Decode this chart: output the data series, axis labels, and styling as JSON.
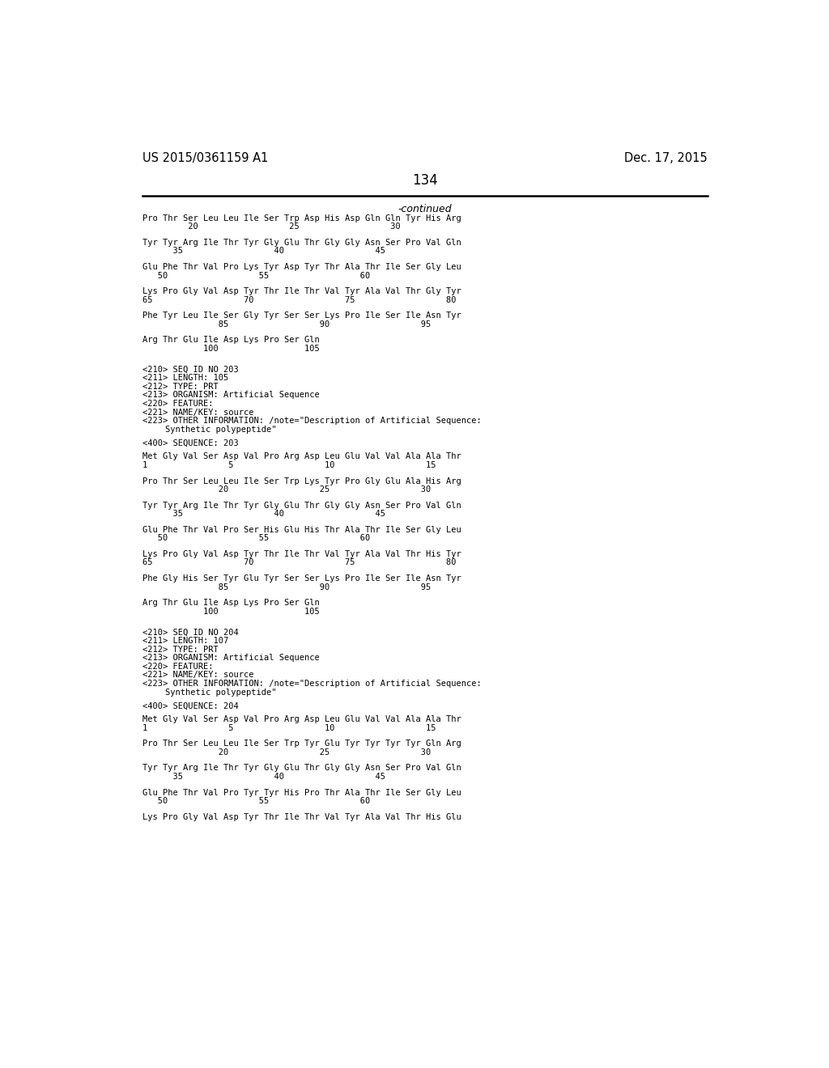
{
  "header_left": "US 2015/0361159 A1",
  "header_right": "Dec. 17, 2015",
  "page_number": "134",
  "continued_label": "-continued",
  "background_color": "#ffffff",
  "text_color": "#000000",
  "mono_font_size": 7.5,
  "header_font_size": 10.5,
  "page_num_font_size": 12,
  "content_lines": [
    {
      "type": "sequence_line",
      "text": "Pro Thr Ser Leu Leu Ile Ser Trp Asp His Asp Gln Gln Tyr His Arg"
    },
    {
      "type": "number_line",
      "text": "         20                  25                  30"
    },
    {
      "type": "blank"
    },
    {
      "type": "sequence_line",
      "text": "Tyr Tyr Arg Ile Thr Tyr Gly Glu Thr Gly Gly Asn Ser Pro Val Gln"
    },
    {
      "type": "number_line",
      "text": "      35                  40                  45"
    },
    {
      "type": "blank"
    },
    {
      "type": "sequence_line",
      "text": "Glu Phe Thr Val Pro Lys Tyr Asp Tyr Thr Ala Thr Ile Ser Gly Leu"
    },
    {
      "type": "number_line",
      "text": "   50                  55                  60"
    },
    {
      "type": "blank"
    },
    {
      "type": "sequence_line",
      "text": "Lys Pro Gly Val Asp Tyr Thr Ile Thr Val Tyr Ala Val Thr Gly Tyr"
    },
    {
      "type": "number_line",
      "text": "65                  70                  75                  80"
    },
    {
      "type": "blank"
    },
    {
      "type": "sequence_line",
      "text": "Phe Tyr Leu Ile Ser Gly Tyr Ser Ser Lys Pro Ile Ser Ile Asn Tyr"
    },
    {
      "type": "number_line",
      "text": "               85                  90                  95"
    },
    {
      "type": "blank"
    },
    {
      "type": "sequence_line",
      "text": "Arg Thr Glu Ile Asp Lys Pro Ser Gln"
    },
    {
      "type": "number_line",
      "text": "            100                 105"
    },
    {
      "type": "blank"
    },
    {
      "type": "blank"
    },
    {
      "type": "meta_line",
      "text": "<210> SEQ ID NO 203"
    },
    {
      "type": "meta_line",
      "text": "<211> LENGTH: 105"
    },
    {
      "type": "meta_line",
      "text": "<212> TYPE: PRT"
    },
    {
      "type": "meta_line",
      "text": "<213> ORGANISM: Artificial Sequence"
    },
    {
      "type": "meta_line",
      "text": "<220> FEATURE:"
    },
    {
      "type": "meta_line",
      "text": "<221> NAME/KEY: source"
    },
    {
      "type": "meta_line",
      "text": "<223> OTHER INFORMATION: /note=\"Description of Artificial Sequence:"
    },
    {
      "type": "meta_line_indent",
      "text": "Synthetic polypeptide\""
    },
    {
      "type": "blank"
    },
    {
      "type": "meta_line",
      "text": "<400> SEQUENCE: 203"
    },
    {
      "type": "blank"
    },
    {
      "type": "sequence_line",
      "text": "Met Gly Val Ser Asp Val Pro Arg Asp Leu Glu Val Val Ala Ala Thr"
    },
    {
      "type": "number_line",
      "text": "1                5                  10                  15"
    },
    {
      "type": "blank"
    },
    {
      "type": "sequence_line",
      "text": "Pro Thr Ser Leu Leu Ile Ser Trp Lys Tyr Pro Gly Glu Ala His Arg"
    },
    {
      "type": "number_line",
      "text": "               20                  25                  30"
    },
    {
      "type": "blank"
    },
    {
      "type": "sequence_line",
      "text": "Tyr Tyr Arg Ile Thr Tyr Gly Glu Thr Gly Gly Asn Ser Pro Val Gln"
    },
    {
      "type": "number_line",
      "text": "      35                  40                  45"
    },
    {
      "type": "blank"
    },
    {
      "type": "sequence_line",
      "text": "Glu Phe Thr Val Pro Ser His Glu His Thr Ala Thr Ile Ser Gly Leu"
    },
    {
      "type": "number_line",
      "text": "   50                  55                  60"
    },
    {
      "type": "blank"
    },
    {
      "type": "sequence_line",
      "text": "Lys Pro Gly Val Asp Tyr Thr Ile Thr Val Tyr Ala Val Thr His Tyr"
    },
    {
      "type": "number_line",
      "text": "65                  70                  75                  80"
    },
    {
      "type": "blank"
    },
    {
      "type": "sequence_line",
      "text": "Phe Gly His Ser Tyr Glu Tyr Ser Ser Lys Pro Ile Ser Ile Asn Tyr"
    },
    {
      "type": "number_line",
      "text": "               85                  90                  95"
    },
    {
      "type": "blank"
    },
    {
      "type": "sequence_line",
      "text": "Arg Thr Glu Ile Asp Lys Pro Ser Gln"
    },
    {
      "type": "number_line",
      "text": "            100                 105"
    },
    {
      "type": "blank"
    },
    {
      "type": "blank"
    },
    {
      "type": "meta_line",
      "text": "<210> SEQ ID NO 204"
    },
    {
      "type": "meta_line",
      "text": "<211> LENGTH: 107"
    },
    {
      "type": "meta_line",
      "text": "<212> TYPE: PRT"
    },
    {
      "type": "meta_line",
      "text": "<213> ORGANISM: Artificial Sequence"
    },
    {
      "type": "meta_line",
      "text": "<220> FEATURE:"
    },
    {
      "type": "meta_line",
      "text": "<221> NAME/KEY: source"
    },
    {
      "type": "meta_line",
      "text": "<223> OTHER INFORMATION: /note=\"Description of Artificial Sequence:"
    },
    {
      "type": "meta_line_indent",
      "text": "Synthetic polypeptide\""
    },
    {
      "type": "blank"
    },
    {
      "type": "meta_line",
      "text": "<400> SEQUENCE: 204"
    },
    {
      "type": "blank"
    },
    {
      "type": "sequence_line",
      "text": "Met Gly Val Ser Asp Val Pro Arg Asp Leu Glu Val Val Ala Ala Thr"
    },
    {
      "type": "number_line",
      "text": "1                5                  10                  15"
    },
    {
      "type": "blank"
    },
    {
      "type": "sequence_line",
      "text": "Pro Thr Ser Leu Leu Ile Ser Trp Tyr Glu Tyr Tyr Tyr Tyr Gln Arg"
    },
    {
      "type": "number_line",
      "text": "               20                  25                  30"
    },
    {
      "type": "blank"
    },
    {
      "type": "sequence_line",
      "text": "Tyr Tyr Arg Ile Thr Tyr Gly Glu Thr Gly Gly Asn Ser Pro Val Gln"
    },
    {
      "type": "number_line",
      "text": "      35                  40                  45"
    },
    {
      "type": "blank"
    },
    {
      "type": "sequence_line",
      "text": "Glu Phe Thr Val Pro Tyr Tyr His Pro Thr Ala Thr Ile Ser Gly Leu"
    },
    {
      "type": "number_line",
      "text": "   50                  55                  60"
    },
    {
      "type": "blank"
    },
    {
      "type": "sequence_line",
      "text": "Lys Pro Gly Val Asp Tyr Thr Ile Thr Val Tyr Ala Val Thr His Glu"
    }
  ]
}
